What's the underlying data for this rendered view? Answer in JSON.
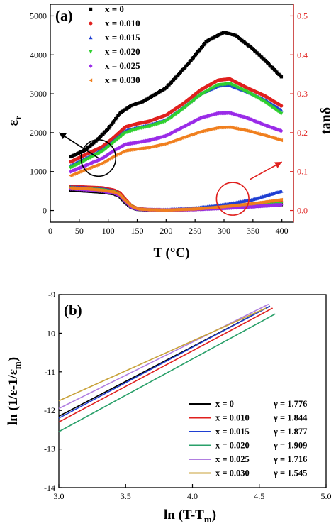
{
  "chart_data": [
    {
      "panel_label": "(a)",
      "type": "scatter",
      "xlabel_main": "T (",
      "xlabel_unit": "°C)",
      "ylabel_left_main": "ε",
      "ylabel_left_sub": "r",
      "ylabel_right": "tanδ",
      "xlim": [
        0,
        420
      ],
      "ylim_left": [
        -300,
        5300
      ],
      "ylim_right": [
        -0.03,
        0.53
      ],
      "xticks": [
        0,
        50,
        100,
        150,
        200,
        250,
        300,
        350,
        400
      ],
      "yticks_left": [
        0,
        1000,
        2000,
        3000,
        4000,
        5000
      ],
      "yticks_right": [
        0.0,
        0.1,
        0.2,
        0.3,
        0.4,
        0.5
      ],
      "yticks_right_labels": [
        "0.0",
        "0.1",
        "0.2",
        "0.3",
        "0.4",
        "0.5"
      ],
      "legend_position": "top-left",
      "series": [
        {
          "name": "x = 0",
          "color": "#000000",
          "marker": "square",
          "permittivity": {
            "x": [
              35,
              60,
              80,
              100,
              120,
              140,
              160,
              200,
              240,
              270,
              300,
              320,
              350,
              375,
              400
            ],
            "y": [
              1380,
              1550,
              1800,
              2100,
              2500,
              2700,
              2800,
              3150,
              3800,
              4350,
              4580,
              4500,
              4150,
              3800,
              3420
            ]
          },
          "tan_delta": {
            "x": [
              35,
              60,
              90,
              110,
              120,
              130,
              140,
              150,
              170,
              200,
              250,
              300,
              350,
              400
            ],
            "y": [
              0.052,
              0.05,
              0.047,
              0.043,
              0.036,
              0.02,
              0.008,
              0.003,
              0.001,
              0.001,
              0.003,
              0.006,
              0.01,
              0.015
            ]
          }
        },
        {
          "name": "x = 0.010",
          "color": "#e0201e",
          "marker": "circle",
          "permittivity": {
            "x": [
              35,
              60,
              90,
              110,
              130,
              150,
              170,
              200,
              230,
              260,
              290,
              310,
              340,
              370,
              400
            ],
            "y": [
              1250,
              1430,
              1640,
              1880,
              2150,
              2230,
              2290,
              2450,
              2750,
              3100,
              3350,
              3380,
              3150,
              2950,
              2680
            ]
          },
          "tan_delta": {
            "x": [
              35,
              60,
              90,
              110,
              120,
              130,
              140,
              150,
              170,
              200,
              250,
              300,
              350,
              400
            ],
            "y": [
              0.062,
              0.06,
              0.058,
              0.052,
              0.045,
              0.028,
              0.012,
              0.005,
              0.002,
              0.001,
              0.003,
              0.008,
              0.014,
              0.022
            ]
          }
        },
        {
          "name": "x = 0.015",
          "color": "#1f3fd2",
          "marker": "triangle",
          "permittivity": {
            "x": [
              35,
              60,
              90,
              110,
              130,
              150,
              170,
              200,
              230,
              260,
              290,
              310,
              340,
              370,
              400
            ],
            "y": [
              1150,
              1330,
              1560,
              1800,
              2050,
              2130,
              2190,
              2330,
              2650,
              3000,
              3200,
              3220,
              3050,
              2850,
              2570
            ]
          },
          "tan_delta": {
            "x": [
              35,
              60,
              90,
              110,
              120,
              130,
              140,
              150,
              170,
              200,
              250,
              300,
              350,
              400
            ],
            "y": [
              0.06,
              0.058,
              0.055,
              0.05,
              0.042,
              0.025,
              0.01,
              0.004,
              0.002,
              0.002,
              0.006,
              0.015,
              0.028,
              0.05
            ]
          }
        },
        {
          "name": "x = 0.020",
          "color": "#2fd02f",
          "marker": "triangle-down",
          "permittivity": {
            "x": [
              35,
              60,
              90,
              110,
              130,
              150,
              170,
              200,
              230,
              260,
              290,
              310,
              340,
              370,
              400
            ],
            "y": [
              1100,
              1290,
              1520,
              1760,
              2000,
              2100,
              2160,
              2300,
              2620,
              2980,
              3230,
              3260,
              3050,
              2800,
              2480
            ]
          },
          "tan_delta": {
            "x": [
              35,
              60,
              90,
              110,
              120,
              130,
              140,
              150,
              170,
              200,
              250,
              300,
              350,
              400
            ],
            "y": [
              0.058,
              0.056,
              0.053,
              0.048,
              0.04,
              0.024,
              0.01,
              0.004,
              0.002,
              0.001,
              0.003,
              0.007,
              0.012,
              0.018
            ]
          }
        },
        {
          "name": "x = 0.025",
          "color": "#9a2be8",
          "marker": "diamond",
          "permittivity": {
            "x": [
              35,
              60,
              90,
              110,
              130,
              150,
              170,
              200,
              230,
              260,
              290,
              310,
              340,
              370,
              400
            ],
            "y": [
              1000,
              1150,
              1340,
              1540,
              1700,
              1750,
              1800,
              1920,
              2150,
              2380,
              2500,
              2510,
              2380,
              2200,
              2040
            ]
          },
          "tan_delta": {
            "x": [
              35,
              60,
              90,
              110,
              120,
              130,
              140,
              150,
              170,
              200,
              250,
              300,
              350,
              400
            ],
            "y": [
              0.056,
              0.054,
              0.05,
              0.045,
              0.038,
              0.022,
              0.009,
              0.004,
              0.002,
              0.001,
              0.003,
              0.006,
              0.01,
              0.015
            ]
          }
        },
        {
          "name": "x = 0.030",
          "color": "#f07f1e",
          "marker": "triangle-left",
          "permittivity": {
            "x": [
              35,
              60,
              90,
              110,
              130,
              150,
              170,
              200,
              230,
              260,
              290,
              310,
              340,
              370,
              400
            ],
            "y": [
              900,
              1050,
              1220,
              1400,
              1540,
              1580,
              1620,
              1720,
              1880,
              2030,
              2130,
              2140,
              2050,
              1930,
              1800
            ]
          },
          "tan_delta": {
            "x": [
              35,
              60,
              90,
              110,
              120,
              130,
              140,
              150,
              170,
              200,
              250,
              300,
              350,
              400
            ],
            "y": [
              0.058,
              0.056,
              0.052,
              0.047,
              0.04,
              0.024,
              0.01,
              0.004,
              0.002,
              0.001,
              0.004,
              0.01,
              0.018,
              0.028
            ]
          }
        }
      ],
      "annotations": [
        {
          "type": "ellipse",
          "color": "#000000",
          "cx": 83,
          "cy": 1350,
          "rx": 30,
          "ry": 470,
          "arrow_to": [
            15,
            2000
          ]
        },
        {
          "type": "ellipse",
          "color": "#e0201e",
          "cx": 315,
          "cy": 300,
          "rx": 28,
          "ry": 420,
          "arrow_from": [
            345,
            800
          ],
          "arrow_to": [
            400,
            1250
          ]
        }
      ]
    },
    {
      "panel_label": "(b)",
      "type": "line",
      "xlabel_main": "ln (T-T",
      "xlabel_sub": "m",
      "xlabel_end": ")",
      "ylabel_main": "ln (1/ε-1/ε",
      "ylabel_sub": "m",
      "ylabel_end": ")",
      "xlim": [
        3.0,
        5.0
      ],
      "ylim": [
        -14,
        -9
      ],
      "xticks": [
        3.0,
        3.5,
        4.0,
        4.5,
        5.0
      ],
      "xticks_labels": [
        "3.0",
        "3.5",
        "4.0",
        "4.5",
        "5.0"
      ],
      "yticks": [
        -14,
        -13,
        -12,
        -11,
        -10,
        -9
      ],
      "legend_position": "bottom-right",
      "series": [
        {
          "name": "x = 0",
          "gamma_label": "γ = 1.776",
          "color": "#000000",
          "x": [
            3.0,
            4.58
          ],
          "y": [
            -12.15,
            -9.3
          ]
        },
        {
          "name": "x = 0.010",
          "gamma_label": "γ = 1.844",
          "color": "#e0201e",
          "x": [
            3.0,
            4.6
          ],
          "y": [
            -12.3,
            -9.35
          ]
        },
        {
          "name": "x = 0.015",
          "gamma_label": "γ = 1.877",
          "color": "#1f3fd2",
          "x": [
            3.0,
            4.58
          ],
          "y": [
            -12.2,
            -9.3
          ]
        },
        {
          "name": "x = 0.020",
          "gamma_label": "γ = 1.909",
          "color": "#2aa06a",
          "x": [
            3.0,
            4.62
          ],
          "y": [
            -12.55,
            -9.5
          ]
        },
        {
          "name": "x = 0.025",
          "gamma_label": "γ = 1.716",
          "color": "#b07ee0",
          "x": [
            3.0,
            4.57
          ],
          "y": [
            -11.95,
            -9.25
          ]
        },
        {
          "name": "x = 0.030",
          "gamma_label": "γ = 1.545",
          "color": "#c8a23a",
          "x": [
            3.0,
            4.55
          ],
          "y": [
            -11.75,
            -9.35
          ]
        }
      ]
    }
  ]
}
